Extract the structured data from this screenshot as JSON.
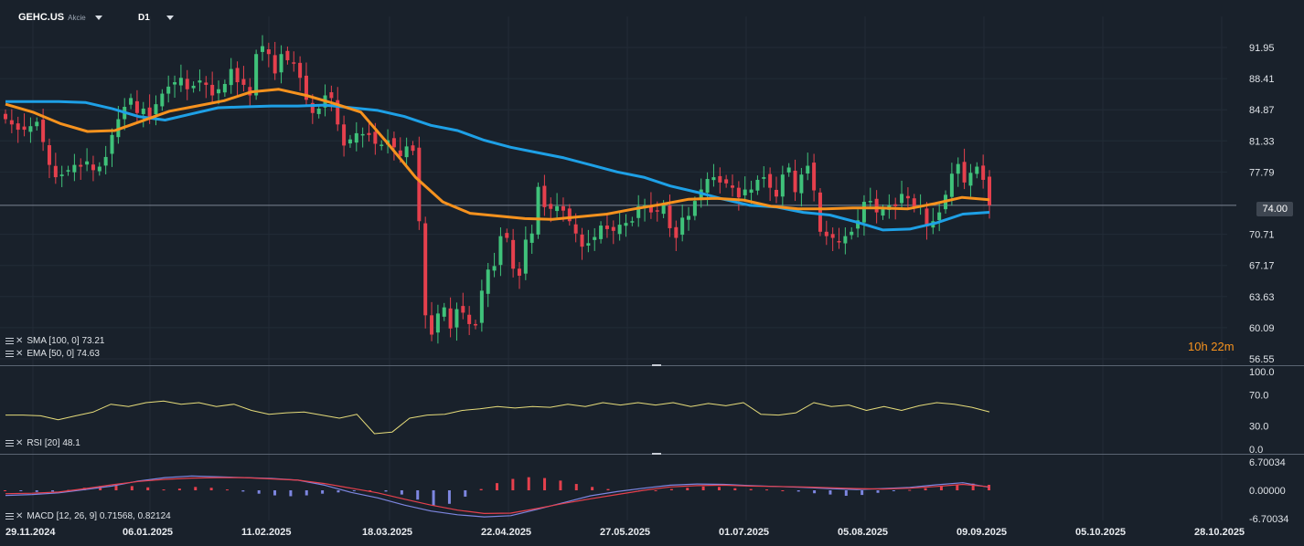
{
  "header": {
    "symbol": "GEHC.US",
    "type": "Akcie",
    "timeframe": "D1"
  },
  "price_tag": "74.00",
  "timer": "10h 22m",
  "indicators": {
    "sma": {
      "label": "SMA [100, 0]",
      "value": "73.21"
    },
    "ema": {
      "label": "EMA [50, 0]",
      "value": "74.63"
    },
    "rsi": {
      "label": "RSI [20]",
      "value": "48.1"
    },
    "macd": {
      "label": "MACD [12, 26, 9]",
      "value1": "0.71568,",
      "value2": "0.82124"
    }
  },
  "colors": {
    "bg": "#19212b",
    "up": "#3fc27a",
    "down": "#e5404d",
    "sma": "#1ea0e6",
    "ema": "#f6921e",
    "rsi": "#e6dc7a",
    "macd": "#7d86e0",
    "signal": "#e5404d"
  },
  "chart_data": [
    {
      "type": "candlestick",
      "title": "GEHC.US",
      "x_tick_labels": [
        "29.11.2024",
        "06.01.2025",
        "11.02.2025",
        "18.03.2025",
        "22.04.2025",
        "27.05.2025",
        "01.07.2025",
        "05.08.2025",
        "09.09.2025",
        "05.10.2025",
        "28.10.2025"
      ],
      "y_tick_labels": [
        "91.95",
        "88.41",
        "84.87",
        "81.33",
        "77.79",
        "74.00",
        "70.71",
        "67.17",
        "63.63",
        "60.09",
        "56.55"
      ],
      "ylim": [
        56.55,
        94.5
      ],
      "current_price": 74.0,
      "close": [
        83.8,
        83.2,
        82.6,
        82.6,
        83.0,
        83.5,
        81.2,
        78.6,
        77.2,
        77.5,
        78.0,
        78.6,
        78.4,
        79.0,
        78.0,
        78.4,
        79.5,
        82.0,
        83.8,
        85.2,
        86.2,
        84.5,
        85.0,
        84.0,
        85.5,
        86.7,
        87.5,
        88.0,
        88.5,
        87.2,
        87.6,
        88.2,
        87.7,
        86.5,
        87.2,
        87.8,
        89.5,
        88.0,
        87.7,
        86.5,
        91.2,
        92.1,
        91.2,
        89.0,
        91.2,
        90.5,
        90.2,
        88.5,
        86.0,
        84.5,
        85.0,
        86.5,
        86.2,
        83.2,
        80.8,
        81.5,
        82.2,
        82.1,
        82.0,
        81.0,
        80.9,
        81.4,
        80.6,
        79.6,
        80.7,
        80.2,
        72.2,
        61.5,
        59.3,
        61.7,
        62.4,
        60.0,
        62.2,
        61.8,
        60.5,
        60.4,
        64.3,
        66.7,
        67.1,
        70.5,
        70.3,
        66.8,
        66.0,
        70.1,
        70.8,
        76.1,
        73.8,
        73.6,
        73.9,
        73.4,
        72.2,
        70.8,
        69.3,
        69.7,
        70.4,
        71.7,
        71.3,
        71.1,
        71.8,
        72.0,
        72.2,
        73.9,
        74.0,
        73.2,
        73.4,
        74.1,
        71.4,
        70.3,
        72.6,
        72.8,
        74.5,
        75.8,
        77.0,
        77.2,
        76.6,
        76.5,
        76.0,
        74.9,
        75.8,
        75.8,
        76.9,
        77.2,
        76.0,
        75.0,
        77.5,
        78.3,
        75.5,
        77.5,
        78.5,
        75.7,
        71.0,
        70.5,
        70.3,
        69.8,
        70.5,
        71.0,
        72.3,
        74.4,
        74.5,
        73.2,
        73.6,
        74.0,
        73.9,
        75.3,
        74.8,
        73.7,
        74.0,
        71.6,
        72.2,
        73.2,
        75.2,
        77.6,
        78.7,
        76.6,
        77.7,
        78.4,
        76.9,
        74.0
      ],
      "sma_100": [
        85.8,
        85.8,
        85.8,
        85.7,
        85.0,
        84.1,
        83.7,
        84.4,
        85.1,
        85.2,
        85.3,
        85.3,
        85.4,
        85.1,
        84.8,
        84.1,
        83.1,
        82.5,
        81.4,
        80.6,
        80.0,
        79.4,
        78.6,
        77.8,
        77.2,
        76.2,
        75.5,
        74.7,
        74.0,
        73.8,
        73.2,
        72.9,
        72.1,
        71.2,
        71.3,
        72.0,
        73.0,
        73.21
      ],
      "ema_50": [
        85.5,
        84.6,
        83.3,
        82.4,
        82.5,
        83.6,
        84.7,
        85.3,
        85.9,
        86.9,
        87.2,
        86.5,
        85.6,
        84.6,
        81.0,
        77.2,
        74.4,
        73.1,
        72.8,
        72.5,
        72.4,
        72.7,
        73.0,
        73.6,
        74.1,
        74.7,
        74.8,
        74.6,
        73.9,
        73.6,
        73.6,
        73.7,
        73.7,
        73.6,
        74.2,
        74.9,
        74.63
      ]
    },
    {
      "type": "line",
      "title": "RSI [20]",
      "y_tick_labels": [
        "100.0",
        "70.0",
        "30.0",
        "0.0"
      ],
      "ylim": [
        0,
        100
      ],
      "values": [
        44,
        44,
        43,
        38,
        43,
        48,
        58,
        55,
        60,
        62,
        58,
        60,
        55,
        58,
        50,
        45,
        47,
        48,
        44,
        40,
        45,
        20,
        22,
        40,
        44,
        45,
        50,
        52,
        55,
        53,
        55,
        54,
        58,
        55,
        60,
        57,
        60,
        57,
        60,
        55,
        59,
        56,
        60,
        45,
        44,
        47,
        60,
        55,
        57,
        50,
        55,
        50,
        56,
        60,
        58,
        54,
        48.1
      ]
    },
    {
      "type": "bar",
      "title": "MACD [12, 26, 9]",
      "y_tick_labels": [
        "6.70034",
        "0.00000",
        "-6.70034"
      ],
      "ylim": [
        -6.70034,
        6.70034
      ],
      "histogram": [
        0,
        -0.2,
        -0.4,
        -0.3,
        0.1,
        0.6,
        1.0,
        1.1,
        1.0,
        0.7,
        0.2,
        0.4,
        0.8,
        0.6,
        0.2,
        -0.3,
        -0.8,
        -1.2,
        -1.4,
        -1.2,
        -0.8,
        -0.5,
        -0.2,
        0,
        -0.3,
        -1.0,
        -2.2,
        -3.6,
        -3.2,
        -1.5,
        0.3,
        1.7,
        2.7,
        3.1,
        2.9,
        2.3,
        1.5,
        0.8,
        0.3,
        0,
        -0.1,
        0,
        0.3,
        0.6,
        0.9,
        0.8,
        0.5,
        0.3,
        0.2,
        0,
        -0.3,
        -0.7,
        -1.0,
        -1.3,
        -1.1,
        -0.6,
        -0.2,
        0.1,
        0.5,
        1.0,
        1.4,
        1.6,
        1.3
      ],
      "macd_line": [
        -1.2,
        -1.0,
        -0.6,
        0.2,
        1.0,
        2.2,
        3.0,
        3.4,
        3.2,
        3.0,
        2.8,
        2.4,
        1.2,
        -0.5,
        -1.8,
        -3.5,
        -4.9,
        -5.8,
        -6.3,
        -6.0,
        -4.5,
        -2.9,
        -1.3,
        -0.3,
        0.5,
        1.2,
        1.5,
        1.4,
        1.1,
        0.9,
        0.7,
        0.4,
        0.2,
        0.4,
        0.7,
        1.3,
        1.8,
        0.72
      ],
      "signal_line": [
        -0.8,
        -0.7,
        -0.4,
        0.4,
        1.3,
        2.1,
        2.6,
        2.9,
        3.0,
        3.0,
        2.7,
        2.4,
        1.6,
        0.5,
        -0.6,
        -2.1,
        -3.5,
        -4.7,
        -5.5,
        -5.4,
        -4.3,
        -3.1,
        -2.0,
        -1.0,
        0.0,
        0.8,
        1.1,
        1.2,
        1.0,
        0.9,
        0.8,
        0.6,
        0.4,
        0.3,
        0.5,
        0.9,
        1.4,
        0.82
      ]
    }
  ]
}
